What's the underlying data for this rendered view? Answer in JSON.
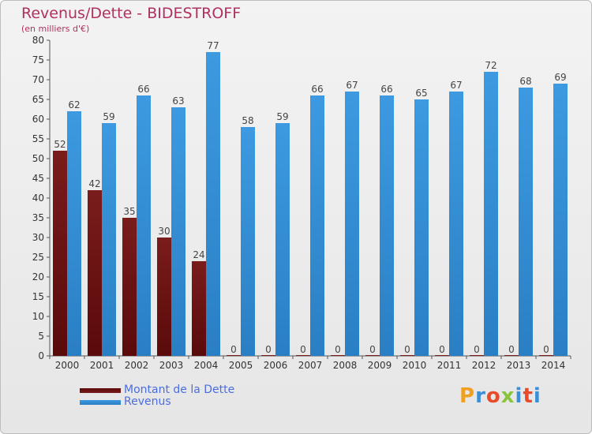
{
  "title": "Revenus/Dette - BIDESTROFF",
  "subtitle": "(en milliers d'€)",
  "logo": {
    "text": "Proxiti",
    "colors": [
      "#f0a020",
      "#3a8fd8",
      "#e84a2a",
      "#8ac43f",
      "#3a8fd8",
      "#e84a2a",
      "#3a8fd8"
    ]
  },
  "colors": {
    "dette": "#7a1c1c",
    "dette_dark": "#5a0a0a",
    "revenus": "#3d9ae0",
    "revenus_dark": "#2a7fc4",
    "title": "#b03060",
    "legend_text": "#4a6ee0"
  },
  "legend": [
    {
      "label": "Montant de la Dette",
      "series": "dette"
    },
    {
      "label": "Revenus",
      "series": "revenus"
    }
  ],
  "chart_data": {
    "type": "bar",
    "title": "Revenus/Dette - BIDESTROFF",
    "subtitle": "(en milliers d'€)",
    "categories": [
      "2000",
      "2001",
      "2002",
      "2003",
      "2004",
      "2005",
      "2006",
      "2007",
      "2008",
      "2009",
      "2010",
      "2011",
      "2012",
      "2013",
      "2014"
    ],
    "series": [
      {
        "name": "Montant de la Dette",
        "key": "dette",
        "values": [
          52,
          42,
          35,
          30,
          24,
          0,
          0,
          0,
          0,
          0,
          0,
          0,
          0,
          0,
          0
        ]
      },
      {
        "name": "Revenus",
        "key": "revenus",
        "values": [
          62,
          59,
          66,
          63,
          77,
          58,
          59,
          66,
          67,
          66,
          65,
          67,
          72,
          68,
          69
        ]
      }
    ],
    "ylim": [
      0,
      80
    ],
    "yticks": [
      0,
      5,
      10,
      15,
      20,
      25,
      30,
      35,
      40,
      45,
      50,
      55,
      60,
      65,
      70,
      75,
      80
    ],
    "grid": false,
    "legend_position": "bottom-left"
  }
}
